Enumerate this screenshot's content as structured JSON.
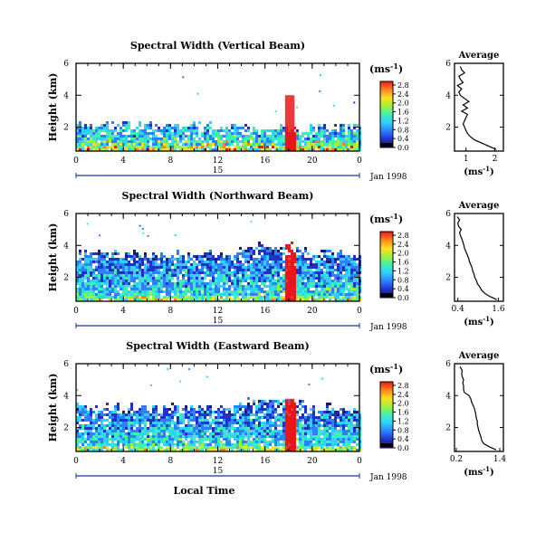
{
  "chart_data": [
    {
      "type": "heatmap",
      "title": "Spectral Width (Vertical Beam)",
      "ylabel": "Height (km)",
      "xticks": [
        "0",
        "4",
        "8",
        "12",
        "16",
        "20",
        "0"
      ],
      "yticks": [
        "2",
        "4",
        "6"
      ],
      "xlim": [
        0,
        24
      ],
      "ylim": [
        0.5,
        6
      ],
      "date_ticks": [
        "15"
      ],
      "date_label": "Jan 1998",
      "colorbar": {
        "unit": "(ms",
        "unit_exp": "-1",
        "unit_close": ")",
        "ticks": [
          "0.0",
          "0.4",
          "0.8",
          "1.2",
          "1.6",
          "2.0",
          "2.4",
          "2.8"
        ]
      },
      "echo_top_km": 2.2,
      "average": {
        "title": "Average",
        "xlabel": "(ms",
        "xlabel_exp": "-1",
        "xlabel_close": ")",
        "xticks": [
          "1",
          "2"
        ],
        "xlim": [
          0.6,
          2.3
        ],
        "ylim": [
          0.5,
          6
        ],
        "height": [
          0.6,
          0.8,
          1.0,
          1.2,
          1.4,
          1.6,
          1.8,
          2.0,
          2.2,
          2.4,
          2.6,
          2.8,
          3.0,
          3.2,
          3.4,
          3.6,
          3.8,
          4.0,
          4.2,
          4.4,
          4.6,
          4.8,
          5.0,
          5.2,
          5.4,
          5.6,
          5.8
        ],
        "value": [
          2.05,
          1.8,
          1.55,
          1.3,
          1.15,
          1.05,
          1.0,
          0.95,
          0.9,
          0.95,
          1.0,
          1.05,
          0.85,
          1.05,
          0.9,
          1.1,
          0.95,
          0.8,
          0.75,
          0.85,
          0.7,
          0.9,
          0.8,
          0.75,
          0.95,
          0.85,
          0.8
        ]
      }
    },
    {
      "type": "heatmap",
      "title": "Spectral Width (Northward Beam)",
      "ylabel": "Height (km)",
      "xticks": [
        "0",
        "4",
        "8",
        "12",
        "16",
        "20",
        "0"
      ],
      "yticks": [
        "2",
        "4",
        "6"
      ],
      "xlim": [
        0,
        24
      ],
      "ylim": [
        0.5,
        6
      ],
      "date_ticks": [
        "15"
      ],
      "date_label": "Jan 1998",
      "colorbar": {
        "unit": "(ms",
        "unit_exp": "-1",
        "unit_close": ")",
        "ticks": [
          "0.0",
          "0.4",
          "0.8",
          "1.2",
          "1.6",
          "2.0",
          "2.4",
          "2.8"
        ]
      },
      "echo_top_km": 3.6,
      "average": {
        "title": "Average",
        "xlabel": "(ms",
        "xlabel_exp": "-1",
        "xlabel_close": ")",
        "xticks": [
          "0.4",
          "1.6"
        ],
        "xlim": [
          0.3,
          1.75
        ],
        "ylim": [
          0.5,
          6
        ],
        "height": [
          0.6,
          0.8,
          1.0,
          1.2,
          1.4,
          1.6,
          1.8,
          2.0,
          2.2,
          2.4,
          2.6,
          2.8,
          3.0,
          3.2,
          3.4,
          3.6,
          3.8,
          4.0,
          4.2,
          4.4,
          4.6,
          4.8,
          5.0,
          5.2,
          5.4,
          5.6,
          5.8
        ],
        "value": [
          1.55,
          1.35,
          1.2,
          1.1,
          1.05,
          0.98,
          0.95,
          0.9,
          0.88,
          0.84,
          0.82,
          0.78,
          0.74,
          0.72,
          0.68,
          0.64,
          0.6,
          0.58,
          0.55,
          0.52,
          0.48,
          0.45,
          0.5,
          0.42,
          0.4,
          0.45,
          0.38
        ]
      }
    },
    {
      "type": "heatmap",
      "title": "Spectral Width (Eastward Beam)",
      "ylabel": "Height (km)",
      "xlabel": "Local Time",
      "xticks": [
        "0",
        "4",
        "8",
        "12",
        "16",
        "20",
        "0"
      ],
      "yticks": [
        "2",
        "4",
        "6"
      ],
      "xlim": [
        0,
        24
      ],
      "ylim": [
        0.5,
        6
      ],
      "date_ticks": [
        "15"
      ],
      "date_label": "Jan 1998",
      "colorbar": {
        "unit": "(ms",
        "unit_exp": "-1",
        "unit_close": ")",
        "ticks": [
          "0.0",
          "0.4",
          "0.8",
          "1.2",
          "1.6",
          "2.0",
          "2.4",
          "2.8"
        ]
      },
      "echo_top_km": 3.3,
      "average": {
        "title": "Average",
        "xlabel": "(ms",
        "xlabel_exp": "-1",
        "xlabel_close": ")",
        "xticks": [
          "0.2",
          "1.4"
        ],
        "xlim": [
          0.15,
          1.5
        ],
        "ylim": [
          0.5,
          6
        ],
        "height": [
          0.6,
          0.8,
          1.0,
          1.2,
          1.4,
          1.6,
          1.8,
          2.0,
          2.2,
          2.4,
          2.6,
          2.8,
          3.0,
          3.2,
          3.4,
          3.6,
          3.8,
          4.0,
          4.2,
          4.4,
          4.6,
          4.8,
          5.0,
          5.2,
          5.4,
          5.6,
          5.8
        ],
        "value": [
          1.3,
          1.1,
          0.95,
          0.9,
          0.88,
          0.85,
          0.82,
          0.8,
          0.78,
          0.78,
          0.75,
          0.74,
          0.72,
          0.7,
          0.66,
          0.62,
          0.6,
          0.55,
          0.42,
          0.4,
          0.4,
          0.38,
          0.4,
          0.36,
          0.35,
          0.36,
          0.3
        ]
      }
    }
  ]
}
